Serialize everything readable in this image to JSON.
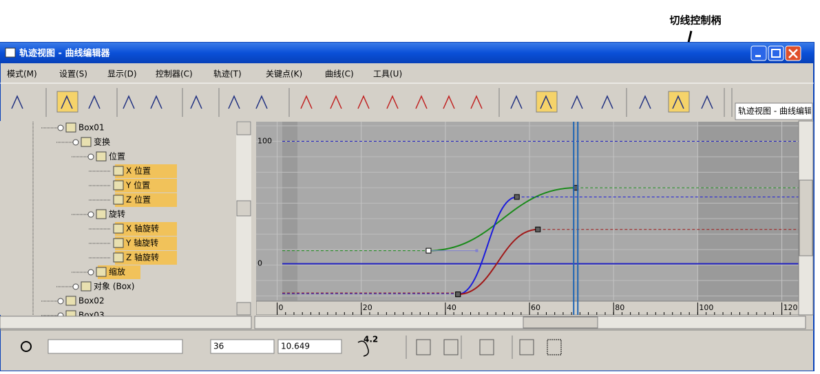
{
  "annotation": "切线控制柄",
  "window": {
    "title": "轨迹视图 - 曲线编辑器"
  },
  "menu": [
    "模式(M)",
    "设置(S)",
    "显示(D)",
    "控制器(C)",
    "轨迹(T)",
    "关键点(K)",
    "曲线(C)",
    "工具(U)"
  ],
  "toolbar": {
    "view_name": "轨迹视图 - 曲线编辑器"
  },
  "tree": [
    {
      "label": "Box01",
      "level": 0,
      "highlight": false
    },
    {
      "label": "变换",
      "level": 1,
      "highlight": false
    },
    {
      "label": "位置",
      "level": 2,
      "highlight": false
    },
    {
      "label": "X 位置",
      "level": 3,
      "highlight": true
    },
    {
      "label": "Y 位置",
      "level": 3,
      "highlight": true
    },
    {
      "label": "Z 位置",
      "level": 3,
      "highlight": true
    },
    {
      "label": "旋转",
      "level": 2,
      "highlight": false
    },
    {
      "label": "X 轴旋转",
      "level": 3,
      "highlight": true
    },
    {
      "label": "Y 轴旋转",
      "level": 3,
      "highlight": true
    },
    {
      "label": "Z 轴旋转",
      "level": 3,
      "highlight": true
    },
    {
      "label": "缩放",
      "level": 2,
      "highlight": true
    },
    {
      "label": "对象 (Box)",
      "level": 1,
      "highlight": false
    },
    {
      "label": "Box02",
      "level": 0,
      "highlight": false
    },
    {
      "label": "Box03",
      "level": 0,
      "highlight": false
    }
  ],
  "graph": {
    "xlim": [
      -5,
      124
    ],
    "ylim": [
      -30,
      116
    ],
    "yticks": [
      0,
      100
    ],
    "xticks": [
      0,
      20,
      40,
      60,
      80,
      100,
      120
    ],
    "time": 71,
    "curves": [
      {
        "color": "#1a8a1a",
        "keys": [
          [
            36,
            10.649
          ],
          [
            71,
            62
          ]
        ]
      },
      {
        "color": "#1a1adc",
        "keys": [
          [
            43,
            -25
          ],
          [
            57,
            54.5
          ]
        ]
      },
      {
        "color": "#a01818",
        "keys": [
          [
            43,
            -25
          ],
          [
            62,
            28
          ]
        ]
      }
    ]
  },
  "status": {
    "frame": 36,
    "value": 10.649,
    "zoom": 4.2
  }
}
